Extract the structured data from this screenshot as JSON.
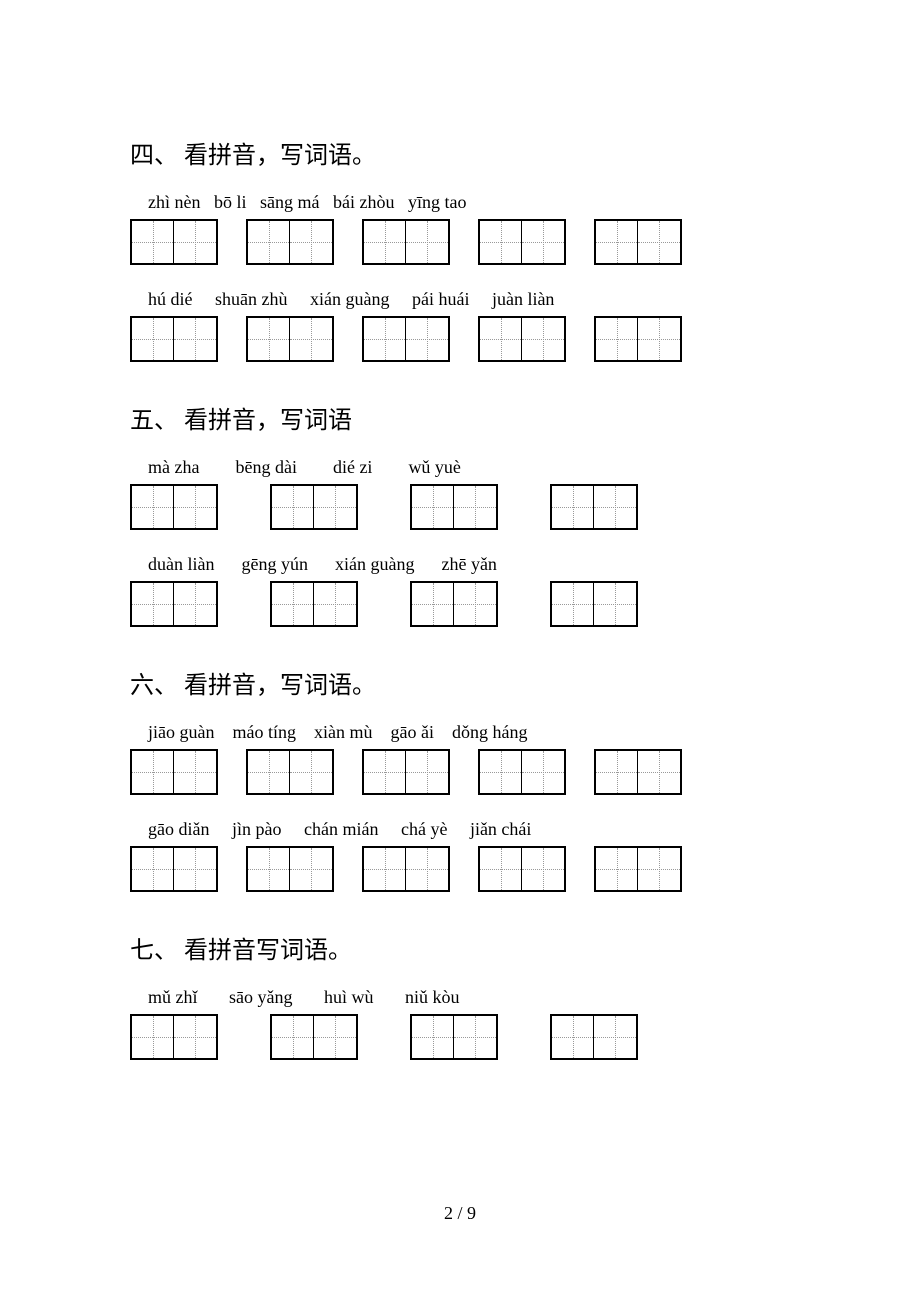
{
  "sections": [
    {
      "title": "四、 看拼音，写词语。",
      "rows": [
        {
          "pinyin": [
            "zhì nèn",
            "bō li",
            "sāng má",
            "bái zhòu",
            "yīng tao"
          ],
          "boxes": 5,
          "gap": "narrow",
          "pad": "   "
        },
        {
          "pinyin": [
            "hú dié",
            "shuān zhù",
            "xián guàng",
            "pái huái",
            "juàn liàn"
          ],
          "boxes": 5,
          "gap": "narrow",
          "pad": "     "
        }
      ]
    },
    {
      "title": "五、 看拼音，写词语",
      "rows": [
        {
          "pinyin": [
            "mà zha",
            "bēng dài",
            "dié zi",
            "wǔ yuè"
          ],
          "boxes": 4,
          "gap": "wide",
          "pad": "        "
        },
        {
          "pinyin": [
            "duàn liàn",
            "gēng yún",
            "xián guàng",
            "zhē yǎn"
          ],
          "boxes": 4,
          "gap": "wide",
          "pad": "      "
        }
      ]
    },
    {
      "title": "六、 看拼音，写词语。",
      "rows": [
        {
          "pinyin": [
            "jiāo guàn",
            "máo tíng",
            "xiàn mù",
            "gāo ǎi",
            "dǒng háng"
          ],
          "boxes": 5,
          "gap": "narrow",
          "pad": "    "
        },
        {
          "pinyin": [
            "gāo diǎn",
            "jìn pào",
            "chán mián",
            "chá yè",
            "jiǎn chái"
          ],
          "boxes": 5,
          "gap": "narrow",
          "pad": "     "
        }
      ]
    },
    {
      "title": "七、 看拼音写词语。",
      "rows": [
        {
          "pinyin": [
            "mǔ zhǐ",
            "sāo yǎng",
            "huì wù",
            "niǔ kòu"
          ],
          "boxes": 4,
          "gap": "wide",
          "pad": "       "
        }
      ]
    }
  ],
  "footer": "2 / 9"
}
